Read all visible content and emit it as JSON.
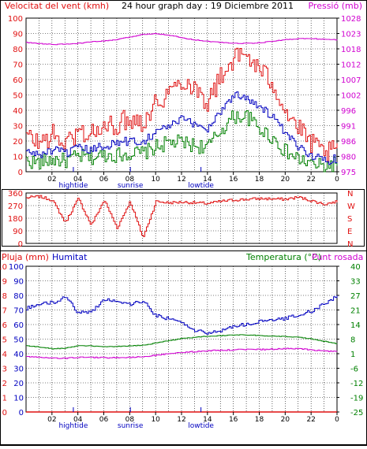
{
  "header": {
    "left": "Velocitat del vent (kmh)",
    "center": "24 hour graph day : 19 Diciembre 2011",
    "right": "Pressió (mb)"
  },
  "hour_ticks": [
    "02",
    "04",
    "06",
    "08",
    "10",
    "12",
    "14",
    "16",
    "18",
    "20",
    "22",
    "0"
  ],
  "events": [
    {
      "label": "hightide",
      "at": 3.65
    },
    {
      "label": "sunrise",
      "at": 8.05
    },
    {
      "label": "lowtide",
      "at": 13.5
    }
  ],
  "colors": {
    "wind_max": "#e01010",
    "wind_avg": "#0000c0",
    "wind_min": "#008000",
    "pressure": "#d000d0",
    "rain": "#e01010",
    "humidity": "#0000c0",
    "temperature": "#008000",
    "dewpoint": "#d000d0",
    "grid": "#000000"
  },
  "chart_data": [
    {
      "type": "line",
      "ylim_left": [
        0,
        100
      ],
      "yticks_left": [
        "100",
        "90",
        "80",
        "70",
        "60",
        "50",
        "40",
        "30",
        "20",
        "10",
        "0"
      ],
      "ylim_right": [
        975,
        1028
      ],
      "yticks_right": [
        "1028",
        "1023",
        "1018",
        "1012",
        "1007",
        "1002",
        "996",
        "991",
        "986",
        "980",
        "975"
      ],
      "x": [
        0,
        1,
        2,
        3,
        4,
        5,
        6,
        7,
        8,
        9,
        10,
        11,
        12,
        13,
        14,
        15,
        16,
        17,
        18,
        19,
        20,
        21,
        22,
        23,
        24
      ],
      "series": [
        {
          "key": "wind_max",
          "values": [
            23,
            19,
            24,
            18,
            26,
            25,
            28,
            31,
            35,
            33,
            45,
            52,
            60,
            55,
            45,
            62,
            74,
            76,
            66,
            58,
            40,
            28,
            18,
            12,
            14
          ]
        },
        {
          "key": "wind_avg",
          "values": [
            13,
            11,
            14,
            12,
            15,
            14,
            17,
            19,
            20,
            20,
            26,
            30,
            34,
            31,
            28,
            40,
            50,
            49,
            42,
            36,
            24,
            16,
            11,
            7,
            9
          ]
        },
        {
          "key": "wind_min",
          "values": [
            7,
            6,
            8,
            7,
            10,
            9,
            11,
            11,
            12,
            12,
            16,
            19,
            19,
            17,
            16,
            27,
            36,
            36,
            28,
            22,
            13,
            8,
            5,
            3,
            6
          ]
        },
        {
          "key": "pressure",
          "axis": "right",
          "values": [
            1019.6,
            1019.2,
            1018.9,
            1019.0,
            1019.3,
            1019.8,
            1020.1,
            1020.6,
            1021.5,
            1022.4,
            1022.7,
            1022.1,
            1021.2,
            1020.5,
            1020.0,
            1019.6,
            1019.3,
            1019.3,
            1019.5,
            1020.0,
            1020.6,
            1020.9,
            1020.9,
            1020.7,
            1020.5
          ]
        }
      ]
    },
    {
      "type": "line",
      "ylim": [
        0,
        360
      ],
      "yticks_left": [
        "360",
        "270",
        "180",
        "90",
        "0"
      ],
      "yticks_right": [
        "N",
        "W",
        "S",
        "E",
        "N"
      ],
      "x": [
        0,
        1,
        2,
        3,
        4,
        5,
        6,
        7,
        8,
        9,
        10,
        11,
        12,
        13,
        14,
        15,
        16,
        17,
        18,
        19,
        20,
        21,
        22,
        23,
        24
      ],
      "series": [
        {
          "key": "wind_dir",
          "values": [
            325,
            335,
            310,
            150,
            320,
            130,
            310,
            110,
            300,
            40,
            300,
            290,
            295,
            290,
            285,
            300,
            310,
            315,
            320,
            318,
            315,
            330,
            305,
            280,
            300
          ]
        }
      ]
    },
    {
      "type": "line",
      "labels": {
        "rain": "Pluja (mm)",
        "humidity": "Humitat",
        "temperature": "Temperatura (°C)",
        "dewpoint": "Punt rosada"
      },
      "yticks_rain": [
        "10",
        "9",
        "8",
        "7",
        "6",
        "5",
        "4",
        "3",
        "2",
        "1",
        "0"
      ],
      "yticks_humidity": [
        "100",
        "90",
        "80",
        "70",
        "60",
        "50",
        "40",
        "30",
        "20",
        "10",
        "0"
      ],
      "ylim_temp": [
        -25,
        40
      ],
      "yticks_temp": [
        "40",
        "33",
        "27",
        "21",
        "14",
        "8",
        "1",
        "-6",
        "-12",
        "-19",
        "-25"
      ],
      "x": [
        0,
        1,
        2,
        3,
        4,
        5,
        6,
        7,
        8,
        9,
        10,
        11,
        12,
        13,
        14,
        15,
        16,
        17,
        18,
        19,
        20,
        21,
        22,
        23,
        24
      ],
      "series": [
        {
          "key": "humidity",
          "values": [
            71,
            74,
            75,
            79,
            68,
            69,
            77,
            76,
            74,
            76,
            66,
            64,
            61,
            56,
            54,
            56,
            59,
            60,
            62,
            63,
            64,
            67,
            69,
            74,
            80
          ]
        },
        {
          "key": "temperature",
          "values": [
            4.5,
            4.0,
            3.2,
            3.5,
            4.5,
            4.5,
            4.1,
            4.2,
            4.5,
            4.8,
            5.8,
            6.8,
            7.8,
            8.3,
            8.8,
            9.0,
            9.4,
            9.4,
            9.1,
            8.8,
            8.6,
            8.3,
            7.6,
            6.5,
            5.4
          ]
        },
        {
          "key": "dewpoint",
          "values": [
            -0.2,
            -0.6,
            -1.0,
            -1.0,
            -0.6,
            -0.6,
            -0.8,
            -0.8,
            -0.6,
            -0.3,
            0.3,
            1.0,
            1.6,
            1.9,
            2.3,
            2.5,
            2.7,
            2.9,
            2.9,
            3.0,
            3.2,
            3.2,
            2.7,
            2.2,
            2.0
          ]
        },
        {
          "key": "rain",
          "values": [
            0,
            0,
            0,
            0,
            0,
            0,
            0,
            0,
            0,
            0,
            0,
            0,
            0,
            0,
            0,
            0,
            0,
            0,
            0,
            0,
            0,
            0,
            0,
            0,
            0
          ]
        }
      ]
    }
  ]
}
